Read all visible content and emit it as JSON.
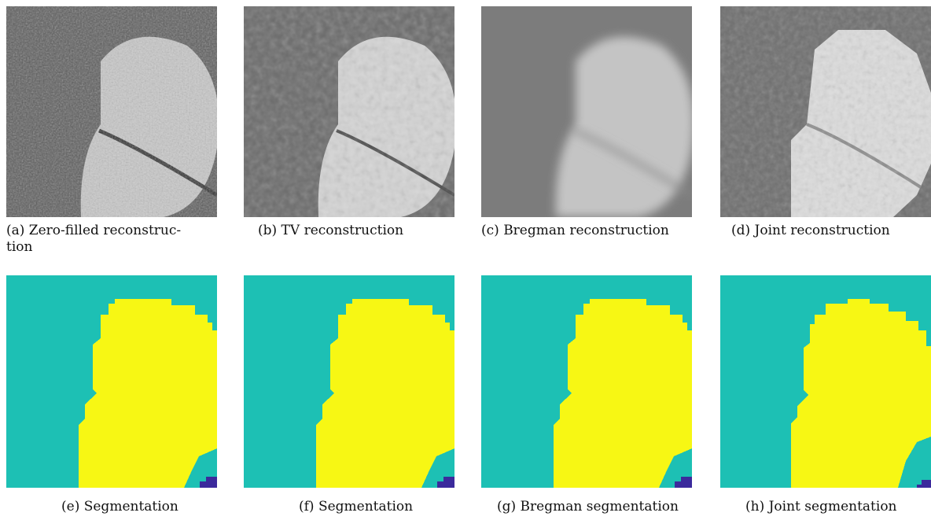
{
  "figure": {
    "row1_captions": [
      {
        "label": "(a)",
        "line1": "(a)  Zero-filled  reconstruc-",
        "line2": "tion"
      },
      {
        "label": "(b)",
        "text": "(b) TV reconstruction"
      },
      {
        "label": "(c)",
        "text": "(c) Bregman reconstruction"
      },
      {
        "label": "(d)",
        "text": "(d) Joint reconstruction"
      }
    ],
    "row2_captions": [
      {
        "label": "(e)",
        "text": "(e) Segmentation"
      },
      {
        "label": "(f)",
        "text": "(f) Segmentation"
      },
      {
        "label": "(g)",
        "text": "(g) Bregman segmentation"
      },
      {
        "label": "(h)",
        "text": "(h) Joint segmentation"
      }
    ]
  },
  "colors": {
    "seg_background": "#1dc0b4",
    "seg_foreground": "#f7f714",
    "seg_corner": "#3b2a9c"
  }
}
